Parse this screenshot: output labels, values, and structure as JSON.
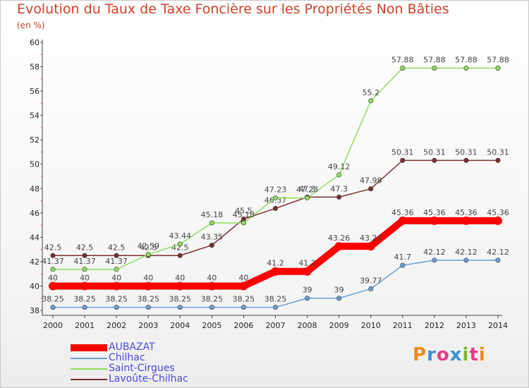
{
  "header": {
    "title": "Evolution du Taux de Taxe Foncière sur les Propriétés Non Bâties",
    "unit": "(en %)"
  },
  "brand": {
    "text": "Proxiti",
    "colors": [
      "#f08a1c",
      "#3a8fd8",
      "#e63c8c",
      "#3a8fd8",
      "#78b82a",
      "#e63c8c",
      "#f08a1c"
    ]
  },
  "chart_data": {
    "type": "line",
    "title": "Evolution du Taux de Taxe Foncière sur les Propriétés Non Bâties",
    "ylabel": "(en %)",
    "xlabel": "",
    "x": [
      "2000",
      "2001",
      "2002",
      "2003",
      "2004",
      "2005",
      "2006",
      "2007",
      "2008",
      "2009",
      "2010",
      "2011",
      "2012",
      "2013",
      "2014"
    ],
    "ylim": [
      38,
      60
    ],
    "yticks": [
      "38",
      "40",
      "42",
      "44",
      "46",
      "48",
      "50",
      "52",
      "54",
      "56",
      "58",
      "60"
    ],
    "grid": false,
    "legend_position": "bottom-left",
    "series": [
      {
        "name": "AUBAZAT",
        "color": "#ff0000",
        "values": [
          40,
          40,
          40,
          40,
          40,
          40,
          40,
          41.2,
          41.2,
          43.26,
          43.26,
          45.36,
          45.36,
          45.36,
          45.36
        ],
        "labels": [
          "40",
          "40",
          "40",
          "40",
          "40",
          "40",
          "40",
          "41.2",
          "41.2",
          "43.26",
          "43.26",
          "45.36",
          "45.36",
          "45.36",
          "45.36"
        ]
      },
      {
        "name": "Chilhac",
        "color": "#6a9fd0",
        "values": [
          38.25,
          38.25,
          38.25,
          38.25,
          38.25,
          38.25,
          38.25,
          38.25,
          39,
          39,
          39.77,
          41.7,
          42.12,
          42.12,
          42.12
        ],
        "labels": [
          "38.25",
          "38.25",
          "38.25",
          "38.25",
          "38.25",
          "38.25",
          "38.25",
          "38.25",
          "39",
          "39",
          "39.77",
          "41.7",
          "42.12",
          "42.12",
          "42.12"
        ]
      },
      {
        "name": "Saint-Cirgues",
        "color": "#90dd60",
        "values": [
          41.37,
          41.37,
          41.37,
          42.59,
          43.44,
          45.18,
          45.18,
          47.23,
          47.23,
          49.12,
          55.2,
          57.88,
          57.88,
          57.88,
          57.88
        ],
        "labels": [
          "41.37",
          "41.37",
          "41.37",
          "42.59",
          "43.44",
          "45.18",
          "45.18",
          "47.23",
          "47.23",
          "49.12",
          "55.2",
          "57.88",
          "57.88",
          "57.88",
          "57.88"
        ]
      },
      {
        "name": "Lavoûte-Chilhac",
        "color": "#7a3030",
        "values": [
          42.5,
          42.5,
          42.5,
          42.5,
          42.5,
          43.35,
          45.5,
          46.37,
          47.3,
          47.3,
          47.98,
          50.31,
          50.31,
          50.31,
          50.31
        ],
        "labels": [
          "42.5",
          "42.5",
          "42.5",
          "42.5",
          "42.5",
          "43.35",
          "45.5",
          "46.37",
          "47.3",
          "47.3",
          "47.98",
          "50.31",
          "50.31",
          "50.31",
          "50.31"
        ]
      }
    ]
  }
}
